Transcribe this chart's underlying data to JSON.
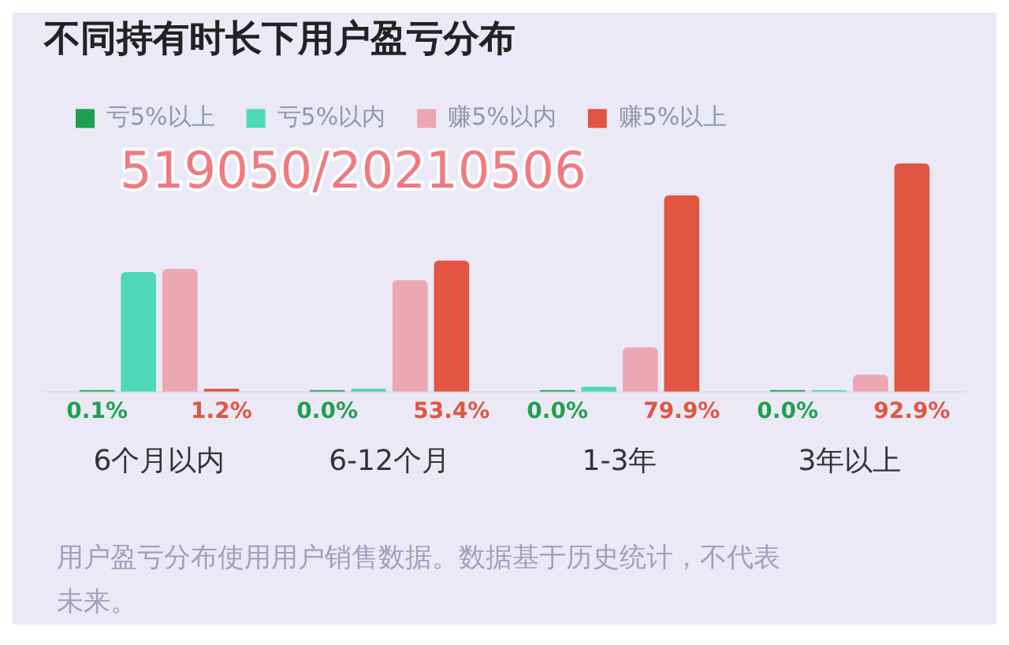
{
  "chart_data": {
    "type": "bar",
    "title": "不同持有时长下用户盈亏分布",
    "categories": [
      "6个月以内",
      "6-12个月",
      "1-3年",
      "3年以上"
    ],
    "series": [
      {
        "name": "亏5%以上",
        "color": "#1fa04e",
        "values": [
          0.1,
          0.0,
          0.0,
          0.0
        ],
        "value_labels": [
          "0.1%",
          "0.0%",
          "0.0%",
          "0.0%"
        ]
      },
      {
        "name": "亏5%以内",
        "color": "#4fd8b8",
        "values": [
          48.7,
          1.2,
          2.0,
          0.2
        ]
      },
      {
        "name": "赚5%以内",
        "color": "#eba8b2",
        "values": [
          50.0,
          45.4,
          18.1,
          6.9
        ]
      },
      {
        "name": "赚5%以上",
        "color": "#e25542",
        "values": [
          1.2,
          53.4,
          79.9,
          92.9
        ],
        "value_labels": [
          "1.2%",
          "53.4%",
          "79.9%",
          "92.9%"
        ]
      }
    ],
    "legend": "top left",
    "grid": false,
    "annotations": [
      "519050/20210506",
      "用户盈亏分布使用用户销售数据。数据基于历史统计，不代表未来。"
    ]
  }
}
